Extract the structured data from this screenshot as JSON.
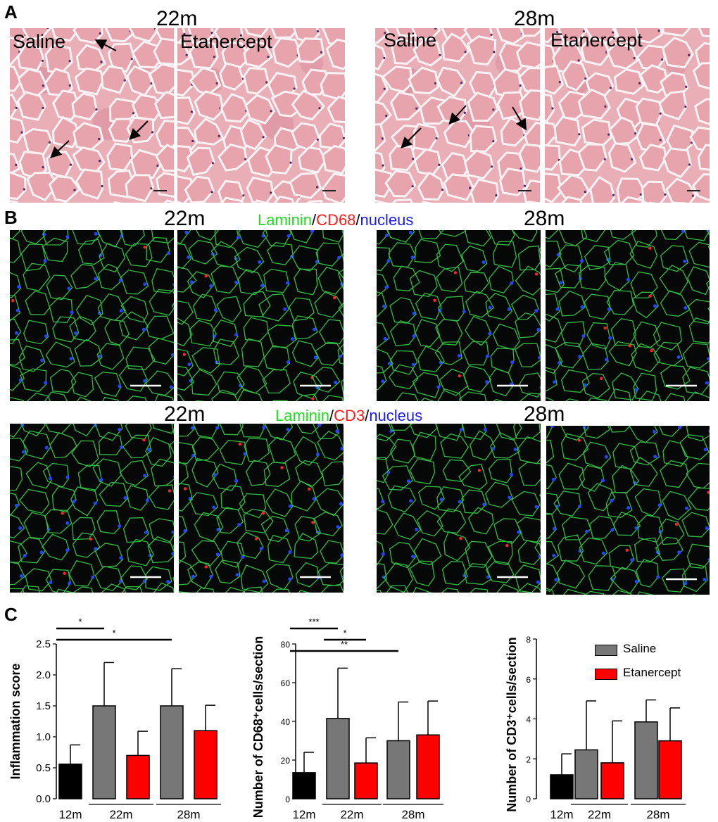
{
  "panel_labels": {
    "A": "A",
    "B": "B",
    "C": "C"
  },
  "panel_a": {
    "ages": [
      "22m",
      "28m"
    ],
    "conditions": {
      "saline": "Saline",
      "etanercept": "Etanercept"
    }
  },
  "panel_b": {
    "ages": [
      "22m",
      "28m"
    ],
    "row1_stain": {
      "part1": "Laminin",
      "sep1": "/",
      "part2": "CD68",
      "sep2": "/",
      "part3": "nucleus"
    },
    "row2_stain": {
      "part1": "Laminin",
      "sep1": "/",
      "part2": "CD3",
      "sep2": "/",
      "part3": "nucleus"
    },
    "stain_colors": {
      "laminin": "#22dd22",
      "marker": "#ff1a1a",
      "nucleus": "#1a1aff"
    }
  },
  "legend": {
    "saline": "Saline",
    "etanercept": "Etanercept"
  },
  "colors": {
    "black_bar": "#000000",
    "grey_bar": "#777777",
    "red_bar": "#ff0000"
  },
  "chart_data": [
    {
      "type": "bar",
      "ylabel": "Inflammation score",
      "ylim": [
        0,
        2.5
      ],
      "yticks": [
        "0.0",
        "0.5",
        "1.0",
        "1.5",
        "2.0",
        "2.5"
      ],
      "group_labels": [
        "12m",
        "22m",
        "28m"
      ],
      "bars": [
        {
          "group": "12m",
          "series": "12m",
          "value": 0.56,
          "error": 0.31
        },
        {
          "group": "22m",
          "series": "Saline",
          "value": 1.5,
          "error": 0.7
        },
        {
          "group": "22m",
          "series": "Etanercept",
          "value": 0.7,
          "error": 0.39
        },
        {
          "group": "28m",
          "series": "Saline",
          "value": 1.5,
          "error": 0.6
        },
        {
          "group": "28m",
          "series": "Etanercept",
          "value": 1.1,
          "error": 0.41
        }
      ],
      "significance": [
        {
          "from": 0,
          "to": 1,
          "label": "*"
        },
        {
          "from": 0,
          "to": 3,
          "label": "*"
        }
      ]
    },
    {
      "type": "bar",
      "ylabel": "Number of CD68⁺cells/section",
      "ylim": [
        0,
        80
      ],
      "yticks": [
        "0",
        "20",
        "40",
        "60",
        "80"
      ],
      "group_labels": [
        "12m",
        "22m",
        "28m"
      ],
      "bars": [
        {
          "group": "12m",
          "series": "12m",
          "value": 13.5,
          "error": 10.5
        },
        {
          "group": "22m",
          "series": "Saline",
          "value": 41.5,
          "error": 26
        },
        {
          "group": "22m",
          "series": "Etanercept",
          "value": 18.5,
          "error": 13
        },
        {
          "group": "28m",
          "series": "Saline",
          "value": 30,
          "error": 20
        },
        {
          "group": "28m",
          "series": "Etanercept",
          "value": 33,
          "error": 17.5
        }
      ],
      "significance": [
        {
          "from": 0,
          "to": 1,
          "label": "***"
        },
        {
          "from": 1,
          "to": 2,
          "label": "*"
        },
        {
          "from": 0,
          "to": 3,
          "label": "**"
        }
      ]
    },
    {
      "type": "bar",
      "ylabel": "Number of CD3⁺cells/section",
      "ylim": [
        0,
        8
      ],
      "yticks": [
        "0",
        "2",
        "4",
        "6",
        "8"
      ],
      "group_labels": [
        "12m",
        "22m",
        "28m"
      ],
      "bars": [
        {
          "group": "12m",
          "series": "12m",
          "value": 1.2,
          "error": 1.05
        },
        {
          "group": "22m",
          "series": "Saline",
          "value": 2.45,
          "error": 2.45
        },
        {
          "group": "22m",
          "series": "Etanercept",
          "value": 1.8,
          "error": 2.1
        },
        {
          "group": "28m",
          "series": "Saline",
          "value": 3.85,
          "error": 1.1
        },
        {
          "group": "28m",
          "series": "Etanercept",
          "value": 2.9,
          "error": 1.65
        }
      ],
      "significance": []
    }
  ]
}
